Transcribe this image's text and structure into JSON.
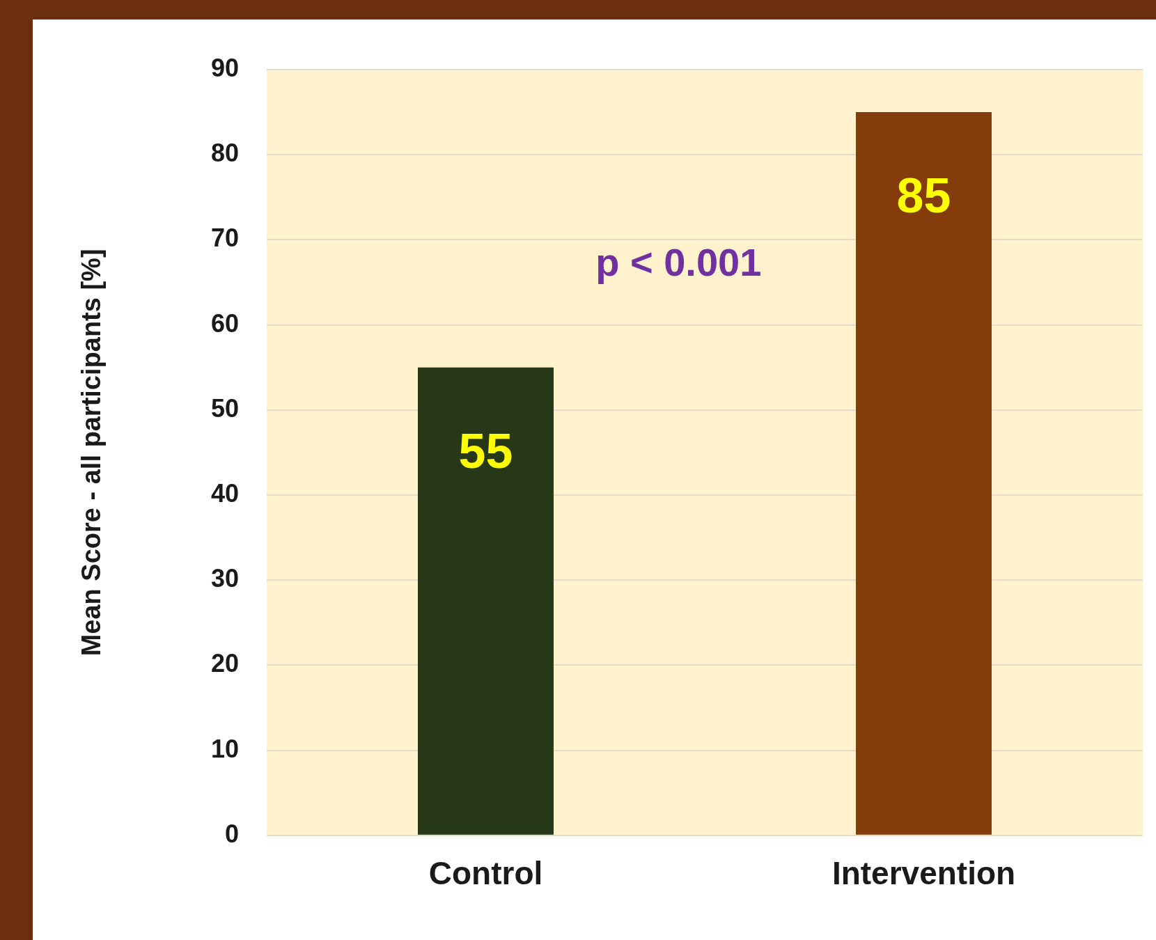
{
  "chart_data": {
    "type": "bar",
    "ylabel": "Mean Score - all participants [%]",
    "categories": [
      "Control",
      "Intervention"
    ],
    "values": [
      55,
      85
    ],
    "colors": [
      "#263818",
      "#843c0c"
    ],
    "ylim": [
      0,
      90
    ],
    "yticks": [
      0,
      10,
      20,
      30,
      40,
      50,
      60,
      70,
      80,
      90
    ],
    "grid": "y",
    "data_labels": true,
    "annotations": [
      "p < 0.001"
    ]
  }
}
